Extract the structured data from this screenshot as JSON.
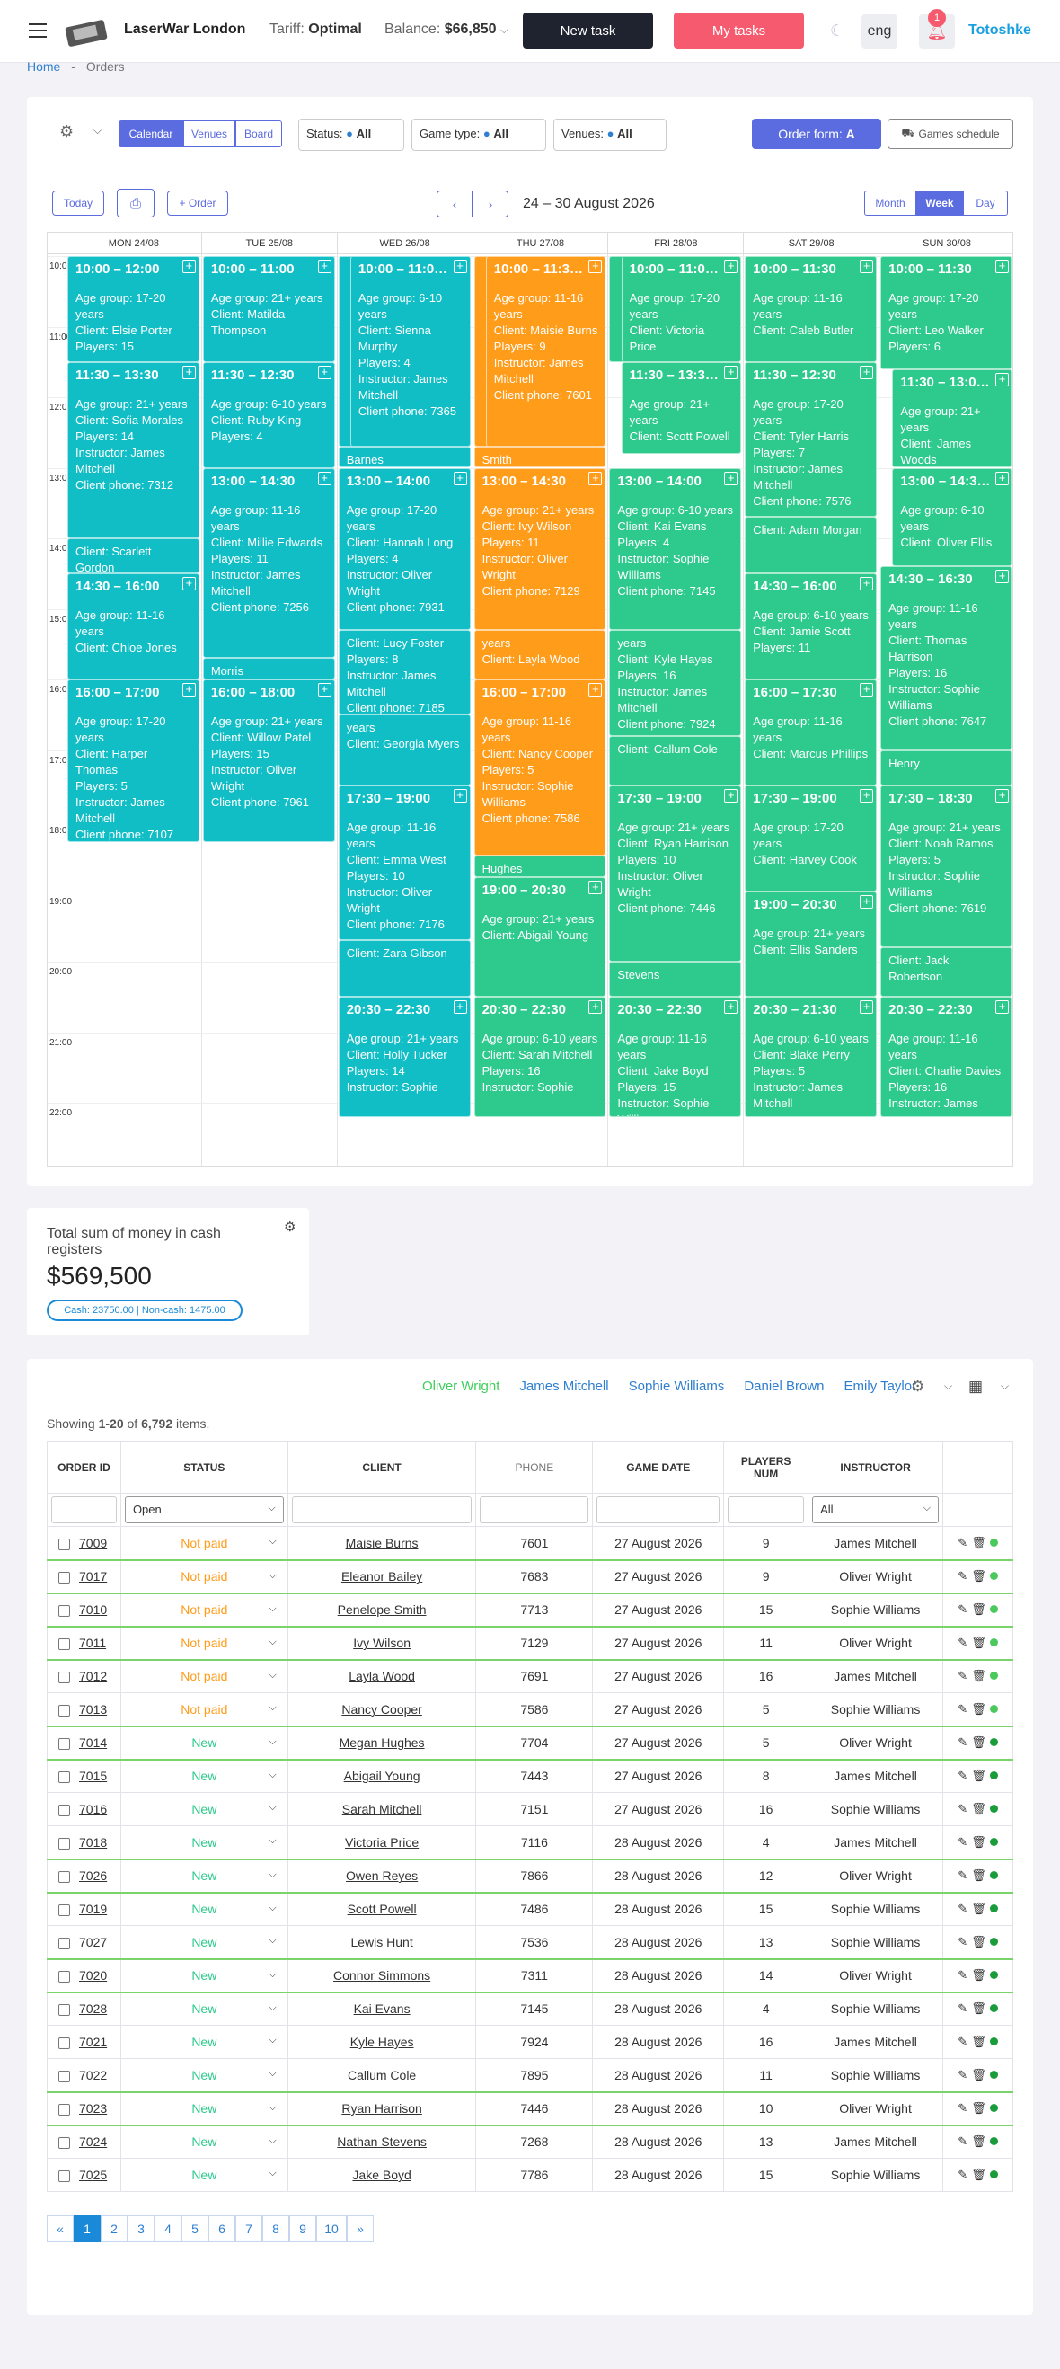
{
  "header": {
    "brand": "LaserWar London",
    "tariff_label": "Tariff:",
    "tariff_value": "Optimal",
    "balance_label": "Balance:",
    "balance_value": "$66,850",
    "new_task": "New task",
    "my_tasks": "My tasks",
    "lang": "eng",
    "notif_count": "1",
    "user": "Totoshke"
  },
  "breadcrumb": {
    "home": "Home",
    "sep": "-",
    "current": "Orders"
  },
  "toolbar": {
    "views": [
      "Calendar",
      "Venues",
      "Board"
    ],
    "status_label": "Status:",
    "status_value": "All",
    "gametype_label": "Game type:",
    "gametype_value": "All",
    "venues_label": "Venues:",
    "venues_value": "All",
    "order_form": "Order form:",
    "order_form_value": "A",
    "games_schedule": "Games schedule"
  },
  "calnav": {
    "today": "Today",
    "order": "+ Order",
    "range": "24 – 30 August 2026",
    "modes": [
      "Month",
      "Week",
      "Day"
    ]
  },
  "days": [
    "MON 24/08",
    "TUE 25/08",
    "WED 26/08",
    "THU 27/08",
    "FRI 28/08",
    "SAT 29/08",
    "SUN 30/08"
  ],
  "hours": [
    "10:00",
    "11:00",
    "12:00",
    "13:00",
    "14:00",
    "15:00",
    "16:00",
    "17:00",
    "18:00",
    "19:00",
    "20:00",
    "21:00",
    "22:00"
  ],
  "events": [
    {
      "d": 0,
      "s": 10,
      "e": 11.5,
      "c": "teal",
      "x": 0,
      "w": 1,
      "time": "10:00 – 12:00",
      "lines": [
        "Age group: 17-20 years",
        "Client: Elsie Porter",
        "Players: 15"
      ]
    },
    {
      "d": 0,
      "s": 11.5,
      "e": 14,
      "c": "teal",
      "x": 0,
      "w": 1,
      "time": "11:30 – 13:30",
      "lines": [
        "Age group: 21+ years",
        "Client: Sofia Morales",
        "Players: 14",
        "Instructor: James Mitchell",
        "Client phone: 7312"
      ]
    },
    {
      "d": 0,
      "s": 14,
      "e": 14.5,
      "c": "teal",
      "x": 0,
      "w": 1,
      "time": "",
      "lines": [
        "Client: Scarlett Gordon"
      ]
    },
    {
      "d": 0,
      "s": 14.5,
      "e": 16,
      "c": "teal",
      "x": 0,
      "w": 1,
      "time": "14:30 – 16:00",
      "lines": [
        "Age group: 11-16 years",
        "Client: Chloe Jones"
      ]
    },
    {
      "d": 0,
      "s": 16,
      "e": 18.3,
      "c": "teal",
      "x": 0,
      "w": 1,
      "time": "16:00 – 17:00",
      "lines": [
        "Age group: 17-20 years",
        "Client: Harper Thomas",
        "Players: 5",
        "Instructor: James Mitchell",
        "Client phone: 7107"
      ]
    },
    {
      "d": 1,
      "s": 10,
      "e": 11.5,
      "c": "teal",
      "x": 0,
      "w": 1,
      "time": "10:00 – 11:00",
      "lines": [
        "Age group: 21+ years",
        "Client: Matilda Thompson"
      ]
    },
    {
      "d": 1,
      "s": 11.5,
      "e": 13,
      "c": "teal",
      "x": 0,
      "w": 1,
      "time": "11:30 – 12:30",
      "lines": [
        "Age group: 6-10 years",
        "Client: Ruby King",
        "Players: 4"
      ]
    },
    {
      "d": 1,
      "s": 13,
      "e": 15.7,
      "c": "teal",
      "x": 0,
      "w": 1,
      "time": "13:00 – 14:30",
      "lines": [
        "Age group: 11-16 years",
        "Client: Millie Edwards",
        "Players: 11",
        "Instructor: James Mitchell",
        "Client phone: 7256"
      ]
    },
    {
      "d": 1,
      "s": 15.7,
      "e": 16,
      "c": "teal",
      "x": 0,
      "w": 1,
      "time": "",
      "lines": [
        "Morris"
      ]
    },
    {
      "d": 1,
      "s": 16,
      "e": 18.3,
      "c": "teal",
      "x": 0,
      "w": 1,
      "time": "16:00 – 18:00",
      "lines": [
        "Age group: 21+ years",
        "Client: Willow Patel",
        "Players: 15",
        "Instructor: Oliver Wright",
        "Client phone: 7961"
      ]
    },
    {
      "d": 2,
      "s": 10,
      "e": 12.7,
      "c": "teal",
      "x": 0,
      "w": 0.12,
      "time": "",
      "lines": []
    },
    {
      "d": 2,
      "s": 10,
      "e": 12.7,
      "c": "teal",
      "x": 0.09,
      "w": 0.91,
      "time": "10:00 – 11:0…",
      "lines": [
        "Age group: 6-10 years",
        "Client: Sienna Murphy",
        "Players: 4",
        "Instructor: James Mitchell",
        "Client phone: 7365"
      ]
    },
    {
      "d": 2,
      "s": 12.7,
      "e": 13,
      "c": "teal",
      "x": 0,
      "w": 1,
      "time": "",
      "lines": [
        "Barnes"
      ]
    },
    {
      "d": 2,
      "s": 13,
      "e": 15.3,
      "c": "teal",
      "x": 0,
      "w": 1,
      "time": "13:00 – 14:00",
      "lines": [
        "Age group: 17-20 years",
        "Client: Hannah Long",
        "Players: 4",
        "Instructor: Oliver Wright",
        "Client phone: 7931"
      ]
    },
    {
      "d": 2,
      "s": 15.3,
      "e": 16.5,
      "c": "teal",
      "x": 0,
      "w": 1,
      "time": "",
      "lines": [
        "Client: Lucy Foster",
        "Players: 8",
        "Instructor: James Mitchell",
        "Client phone: 7185"
      ]
    },
    {
      "d": 2,
      "s": 16.5,
      "e": 17.5,
      "c": "teal",
      "x": 0,
      "w": 1,
      "time": "",
      "lines": [
        "years",
        "Client: Georgia Myers"
      ]
    },
    {
      "d": 2,
      "s": 17.5,
      "e": 19.7,
      "c": "teal",
      "x": 0,
      "w": 1,
      "time": "17:30 – 19:00",
      "lines": [
        "Age group: 11-16 years",
        "Client: Emma West",
        "Players: 10",
        "Instructor: Oliver Wright",
        "Client phone: 7176"
      ]
    },
    {
      "d": 2,
      "s": 19.7,
      "e": 20.5,
      "c": "teal",
      "x": 0,
      "w": 1,
      "time": "",
      "lines": [
        "Client: Zara Gibson"
      ]
    },
    {
      "d": 2,
      "s": 20.5,
      "e": 22.2,
      "c": "teal",
      "x": 0,
      "w": 1,
      "time": "20:30 – 22:30",
      "lines": [
        "Age group: 21+ years",
        "Client: Holly Tucker",
        "Players: 14",
        "Instructor: Sophie"
      ]
    },
    {
      "d": 3,
      "s": 10,
      "e": 12.7,
      "c": "orange",
      "x": 0,
      "w": 0.12,
      "time": "",
      "lines": []
    },
    {
      "d": 3,
      "s": 10,
      "e": 12.7,
      "c": "orange",
      "x": 0.09,
      "w": 0.91,
      "time": "10:00 – 11:3…",
      "lines": [
        "Age group: 11-16 years",
        "Client: Maisie Burns",
        "Players: 9",
        "Instructor: James Mitchell",
        "Client phone: 7601"
      ]
    },
    {
      "d": 3,
      "s": 12.7,
      "e": 13,
      "c": "orange",
      "x": 0,
      "w": 1,
      "time": "",
      "lines": [
        "Smith"
      ]
    },
    {
      "d": 3,
      "s": 13,
      "e": 15.3,
      "c": "orange",
      "x": 0,
      "w": 1,
      "time": "13:00 – 14:30",
      "lines": [
        "Age group: 21+ years",
        "Client: Ivy Wilson",
        "Players: 11",
        "Instructor: Oliver Wright",
        "Client phone: 7129"
      ]
    },
    {
      "d": 3,
      "s": 15.3,
      "e": 16,
      "c": "orange",
      "x": 0,
      "w": 1,
      "time": "",
      "lines": [
        "years",
        "Client: Layla Wood"
      ]
    },
    {
      "d": 3,
      "s": 16,
      "e": 18.5,
      "c": "orange",
      "x": 0,
      "w": 1,
      "time": "16:00 – 17:00",
      "lines": [
        "Age group: 11-16 years",
        "Client: Nancy Cooper",
        "Players: 5",
        "Instructor: Sophie Williams",
        "Client phone: 7586"
      ]
    },
    {
      "d": 3,
      "s": 18.5,
      "e": 18.8,
      "c": "green",
      "x": 0,
      "w": 1,
      "time": "",
      "lines": [
        "Hughes"
      ]
    },
    {
      "d": 3,
      "s": 18.8,
      "e": 20.5,
      "c": "green",
      "x": 0,
      "w": 1,
      "time": "19:00 – 20:30",
      "lines": [
        "Age group: 21+ years",
        "Client: Abigail Young"
      ]
    },
    {
      "d": 3,
      "s": 20.5,
      "e": 22.2,
      "c": "green",
      "x": 0,
      "w": 1,
      "time": "20:30 – 22:30",
      "lines": [
        "Age group: 6-10 years",
        "Client: Sarah Mitchell",
        "Players: 16",
        "Instructor: Sophie"
      ]
    },
    {
      "d": 4,
      "s": 10,
      "e": 11.5,
      "c": "green",
      "x": 0,
      "w": 0.12,
      "time": "",
      "lines": []
    },
    {
      "d": 4,
      "s": 10,
      "e": 11.5,
      "c": "green",
      "x": 0.09,
      "w": 0.91,
      "time": "10:00 – 11:0…",
      "lines": [
        "Age group: 17-20 years",
        "Client: Victoria Price"
      ]
    },
    {
      "d": 4,
      "s": 11.5,
      "e": 12.8,
      "c": "green",
      "x": 0.09,
      "w": 0.91,
      "time": "11:30 – 13:3…",
      "lines": [
        "Age group: 21+ years",
        "Client: Scott Powell"
      ]
    },
    {
      "d": 4,
      "s": 13,
      "e": 15.3,
      "c": "green",
      "x": 0,
      "w": 1,
      "time": "13:00 – 14:00",
      "lines": [
        "Age group: 6-10 years",
        "Client: Kai Evans",
        "Players: 4",
        "Instructor: Sophie Williams",
        "Client phone: 7145"
      ]
    },
    {
      "d": 4,
      "s": 15.3,
      "e": 16.8,
      "c": "green",
      "x": 0,
      "w": 1,
      "time": "",
      "lines": [
        "years",
        "Client: Kyle Hayes",
        "Players: 16",
        "Instructor: James Mitchell",
        "Client phone: 7924"
      ]
    },
    {
      "d": 4,
      "s": 16.8,
      "e": 17.5,
      "c": "green",
      "x": 0,
      "w": 1,
      "time": "",
      "lines": [
        "Client: Callum Cole"
      ]
    },
    {
      "d": 4,
      "s": 17.5,
      "e": 20,
      "c": "green",
      "x": 0,
      "w": 1,
      "time": "17:30 – 19:00",
      "lines": [
        "Age group: 21+ years",
        "Client: Ryan Harrison",
        "Players: 10",
        "Instructor: Oliver Wright",
        "Client phone: 7446"
      ]
    },
    {
      "d": 4,
      "s": 20,
      "e": 20.5,
      "c": "green",
      "x": 0,
      "w": 1,
      "time": "",
      "lines": [
        "Stevens"
      ]
    },
    {
      "d": 4,
      "s": 20.5,
      "e": 22.2,
      "c": "green",
      "x": 0,
      "w": 1,
      "time": "20:30 – 22:30",
      "lines": [
        "Age group: 11-16 years",
        "Client: Jake Boyd",
        "Players: 15",
        "Instructor: Sophie Williams"
      ]
    },
    {
      "d": 5,
      "s": 10,
      "e": 11.5,
      "c": "green",
      "x": 0,
      "w": 1,
      "time": "10:00 – 11:30",
      "lines": [
        "Age group: 11-16 years",
        "Client: Caleb Butler"
      ]
    },
    {
      "d": 5,
      "s": 11.5,
      "e": 13.7,
      "c": "green",
      "x": 0,
      "w": 1,
      "time": "11:30 – 12:30",
      "lines": [
        "Age group: 17-20 years",
        "Client: Tyler Harris",
        "Players: 7",
        "Instructor: James Mitchell",
        "Client phone: 7576"
      ]
    },
    {
      "d": 5,
      "s": 13.7,
      "e": 14.5,
      "c": "green",
      "x": 0,
      "w": 1,
      "time": "",
      "lines": [
        "Client: Adam Morgan"
      ]
    },
    {
      "d": 5,
      "s": 14.5,
      "e": 16,
      "c": "green",
      "x": 0,
      "w": 1,
      "time": "14:30 – 16:00",
      "lines": [
        "Age group: 6-10 years",
        "Client: Jamie Scott",
        "Players: 11"
      ]
    },
    {
      "d": 5,
      "s": 16,
      "e": 17.5,
      "c": "green",
      "x": 0,
      "w": 1,
      "time": "16:00 – 17:30",
      "lines": [
        "Age group: 11-16 years",
        "Client: Marcus Phillips"
      ]
    },
    {
      "d": 5,
      "s": 17.5,
      "e": 19,
      "c": "green",
      "x": 0,
      "w": 1,
      "time": "17:30 – 19:00",
      "lines": [
        "Age group: 17-20 years",
        "Client: Harvey Cook"
      ]
    },
    {
      "d": 5,
      "s": 19,
      "e": 20.5,
      "c": "green",
      "x": 0,
      "w": 1,
      "time": "19:00 – 20:30",
      "lines": [
        "Age group: 21+ years",
        "Client: Ellis Sanders"
      ]
    },
    {
      "d": 5,
      "s": 20.5,
      "e": 22.2,
      "c": "green",
      "x": 0,
      "w": 1,
      "time": "20:30 – 21:30",
      "lines": [
        "Age group: 6-10 years",
        "Client: Blake Perry",
        "Players: 5",
        "Instructor: James Mitchell"
      ]
    },
    {
      "d": 6,
      "s": 10,
      "e": 11.6,
      "c": "green",
      "x": 0,
      "w": 1,
      "time": "10:00 – 11:30",
      "lines": [
        "Age group: 17-20 years",
        "Client: Leo Walker",
        "Players: 6"
      ]
    },
    {
      "d": 6,
      "s": 11.6,
      "e": 13,
      "c": "green",
      "x": 0.09,
      "w": 0.91,
      "time": "11:30 – 13:0…",
      "lines": [
        "Age group: 21+ years",
        "Client: James Woods"
      ]
    },
    {
      "d": 6,
      "s": 13,
      "e": 14.4,
      "c": "green",
      "x": 0.09,
      "w": 0.91,
      "time": "13:00 – 14:3…",
      "lines": [
        "Age group: 6-10 years",
        "Client: Oliver Ellis"
      ]
    },
    {
      "d": 6,
      "s": 14.4,
      "e": 17,
      "c": "green",
      "x": 0,
      "w": 1,
      "time": "14:30 – 16:30",
      "lines": [
        "Age group: 11-16 years",
        "Client: Thomas Harrison",
        "Players: 16",
        "Instructor: Sophie Williams",
        "Client phone: 7647"
      ]
    },
    {
      "d": 6,
      "s": 17,
      "e": 17.5,
      "c": "green",
      "x": 0,
      "w": 1,
      "time": "",
      "lines": [
        "Henry"
      ]
    },
    {
      "d": 6,
      "s": 17.5,
      "e": 19.8,
      "c": "green",
      "x": 0,
      "w": 1,
      "time": "17:30 – 18:30",
      "lines": [
        "Age group: 21+ years",
        "Client: Noah Ramos",
        "Players: 5",
        "Instructor: Sophie Williams",
        "Client phone: 7619"
      ]
    },
    {
      "d": 6,
      "s": 19.8,
      "e": 20.5,
      "c": "green",
      "x": 0,
      "w": 1,
      "time": "",
      "lines": [
        "Client: Jack Robertson"
      ]
    },
    {
      "d": 6,
      "s": 20.5,
      "e": 22.2,
      "c": "green",
      "x": 0,
      "w": 1,
      "time": "20:30 – 22:30",
      "lines": [
        "Age group: 11-16 years",
        "Client: Charlie Davies",
        "Players: 16",
        "Instructor: James"
      ]
    }
  ],
  "cash": {
    "title": "Total sum of money in cash registers",
    "amount": "$569,500",
    "detail": "Cash: 23750.00 | Non-cash: 1475.00"
  },
  "instructor_filter": [
    "Oliver Wright",
    "James Mitchell",
    "Sophie Williams",
    "Daniel Brown",
    "Emily Taylor"
  ],
  "summary": {
    "prefix": "Showing",
    "range": "1-20",
    "of": "of",
    "total": "6,792",
    "suffix": "items."
  },
  "columns": [
    "ORDER ID",
    "STATUS",
    "CLIENT",
    "PHONE",
    "GAME DATE",
    "PLAYERS NUM",
    "INSTRUCTOR"
  ],
  "filters": {
    "status": "Open",
    "instructor": "All"
  },
  "orders": [
    {
      "id": "7009",
      "status": "Not paid",
      "client": "Maisie Burns",
      "phone": "7601",
      "date": "27 August 2026",
      "players": "9",
      "instructor": "James Mitchell",
      "hl": false
    },
    {
      "id": "7017",
      "status": "Not paid",
      "client": "Eleanor Bailey",
      "phone": "7683",
      "date": "27 August 2026",
      "players": "9",
      "instructor": "Oliver Wright",
      "hl": true
    },
    {
      "id": "7010",
      "status": "Not paid",
      "client": "Penelope Smith",
      "phone": "7713",
      "date": "27 August 2026",
      "players": "15",
      "instructor": "Sophie Williams",
      "hl": false
    },
    {
      "id": "7011",
      "status": "Not paid",
      "client": "Ivy Wilson",
      "phone": "7129",
      "date": "27 August 2026",
      "players": "11",
      "instructor": "Oliver Wright",
      "hl": true
    },
    {
      "id": "7012",
      "status": "Not paid",
      "client": "Layla Wood",
      "phone": "7691",
      "date": "27 August 2026",
      "players": "16",
      "instructor": "James Mitchell",
      "hl": false
    },
    {
      "id": "7013",
      "status": "Not paid",
      "client": "Nancy Cooper",
      "phone": "7586",
      "date": "27 August 2026",
      "players": "5",
      "instructor": "Sophie Williams",
      "hl": false
    },
    {
      "id": "7014",
      "status": "New",
      "client": "Megan Hughes",
      "phone": "7704",
      "date": "27 August 2026",
      "players": "5",
      "instructor": "Oliver Wright",
      "hl": true
    },
    {
      "id": "7015",
      "status": "New",
      "client": "Abigail Young",
      "phone": "7443",
      "date": "27 August 2026",
      "players": "8",
      "instructor": "James Mitchell",
      "hl": false
    },
    {
      "id": "7016",
      "status": "New",
      "client": "Sarah Mitchell",
      "phone": "7151",
      "date": "27 August 2026",
      "players": "16",
      "instructor": "Sophie Williams",
      "hl": false
    },
    {
      "id": "7018",
      "status": "New",
      "client": "Victoria Price",
      "phone": "7116",
      "date": "28 August 2026",
      "players": "4",
      "instructor": "James Mitchell",
      "hl": false
    },
    {
      "id": "7026",
      "status": "New",
      "client": "Owen Reyes",
      "phone": "7866",
      "date": "28 August 2026",
      "players": "12",
      "instructor": "Oliver Wright",
      "hl": true
    },
    {
      "id": "7019",
      "status": "New",
      "client": "Scott Powell",
      "phone": "7486",
      "date": "28 August 2026",
      "players": "15",
      "instructor": "Sophie Williams",
      "hl": false
    },
    {
      "id": "7027",
      "status": "New",
      "client": "Lewis Hunt",
      "phone": "7536",
      "date": "28 August 2026",
      "players": "13",
      "instructor": "Sophie Williams",
      "hl": false
    },
    {
      "id": "7020",
      "status": "New",
      "client": "Connor Simmons",
      "phone": "7311",
      "date": "28 August 2026",
      "players": "14",
      "instructor": "Oliver Wright",
      "hl": true
    },
    {
      "id": "7028",
      "status": "New",
      "client": "Kai Evans",
      "phone": "7145",
      "date": "28 August 2026",
      "players": "4",
      "instructor": "Sophie Williams",
      "hl": false
    },
    {
      "id": "7021",
      "status": "New",
      "client": "Kyle Hayes",
      "phone": "7924",
      "date": "28 August 2026",
      "players": "16",
      "instructor": "James Mitchell",
      "hl": false
    },
    {
      "id": "7022",
      "status": "New",
      "client": "Callum Cole",
      "phone": "7895",
      "date": "28 August 2026",
      "players": "11",
      "instructor": "Sophie Williams",
      "hl": false
    },
    {
      "id": "7023",
      "status": "New",
      "client": "Ryan Harrison",
      "phone": "7446",
      "date": "28 August 2026",
      "players": "10",
      "instructor": "Oliver Wright",
      "hl": true
    },
    {
      "id": "7024",
      "status": "New",
      "client": "Nathan Stevens",
      "phone": "7268",
      "date": "28 August 2026",
      "players": "13",
      "instructor": "James Mitchell",
      "hl": false
    },
    {
      "id": "7025",
      "status": "New",
      "client": "Jake Boyd",
      "phone": "7786",
      "date": "28 August 2026",
      "players": "15",
      "instructor": "Sophie Williams",
      "hl": false
    }
  ],
  "pagination": [
    "«",
    "1",
    "2",
    "3",
    "4",
    "5",
    "6",
    "7",
    "8",
    "9",
    "10",
    "»"
  ],
  "colors": {
    "accent": "#5b6be0",
    "teal": "#12bec6",
    "green": "#2ec98d",
    "orange": "#ff9c1a",
    "dark": "#1f2330",
    "pink": "#f55a6e",
    "notpaid": "#ff9c1a",
    "new": "#2ec98d"
  }
}
